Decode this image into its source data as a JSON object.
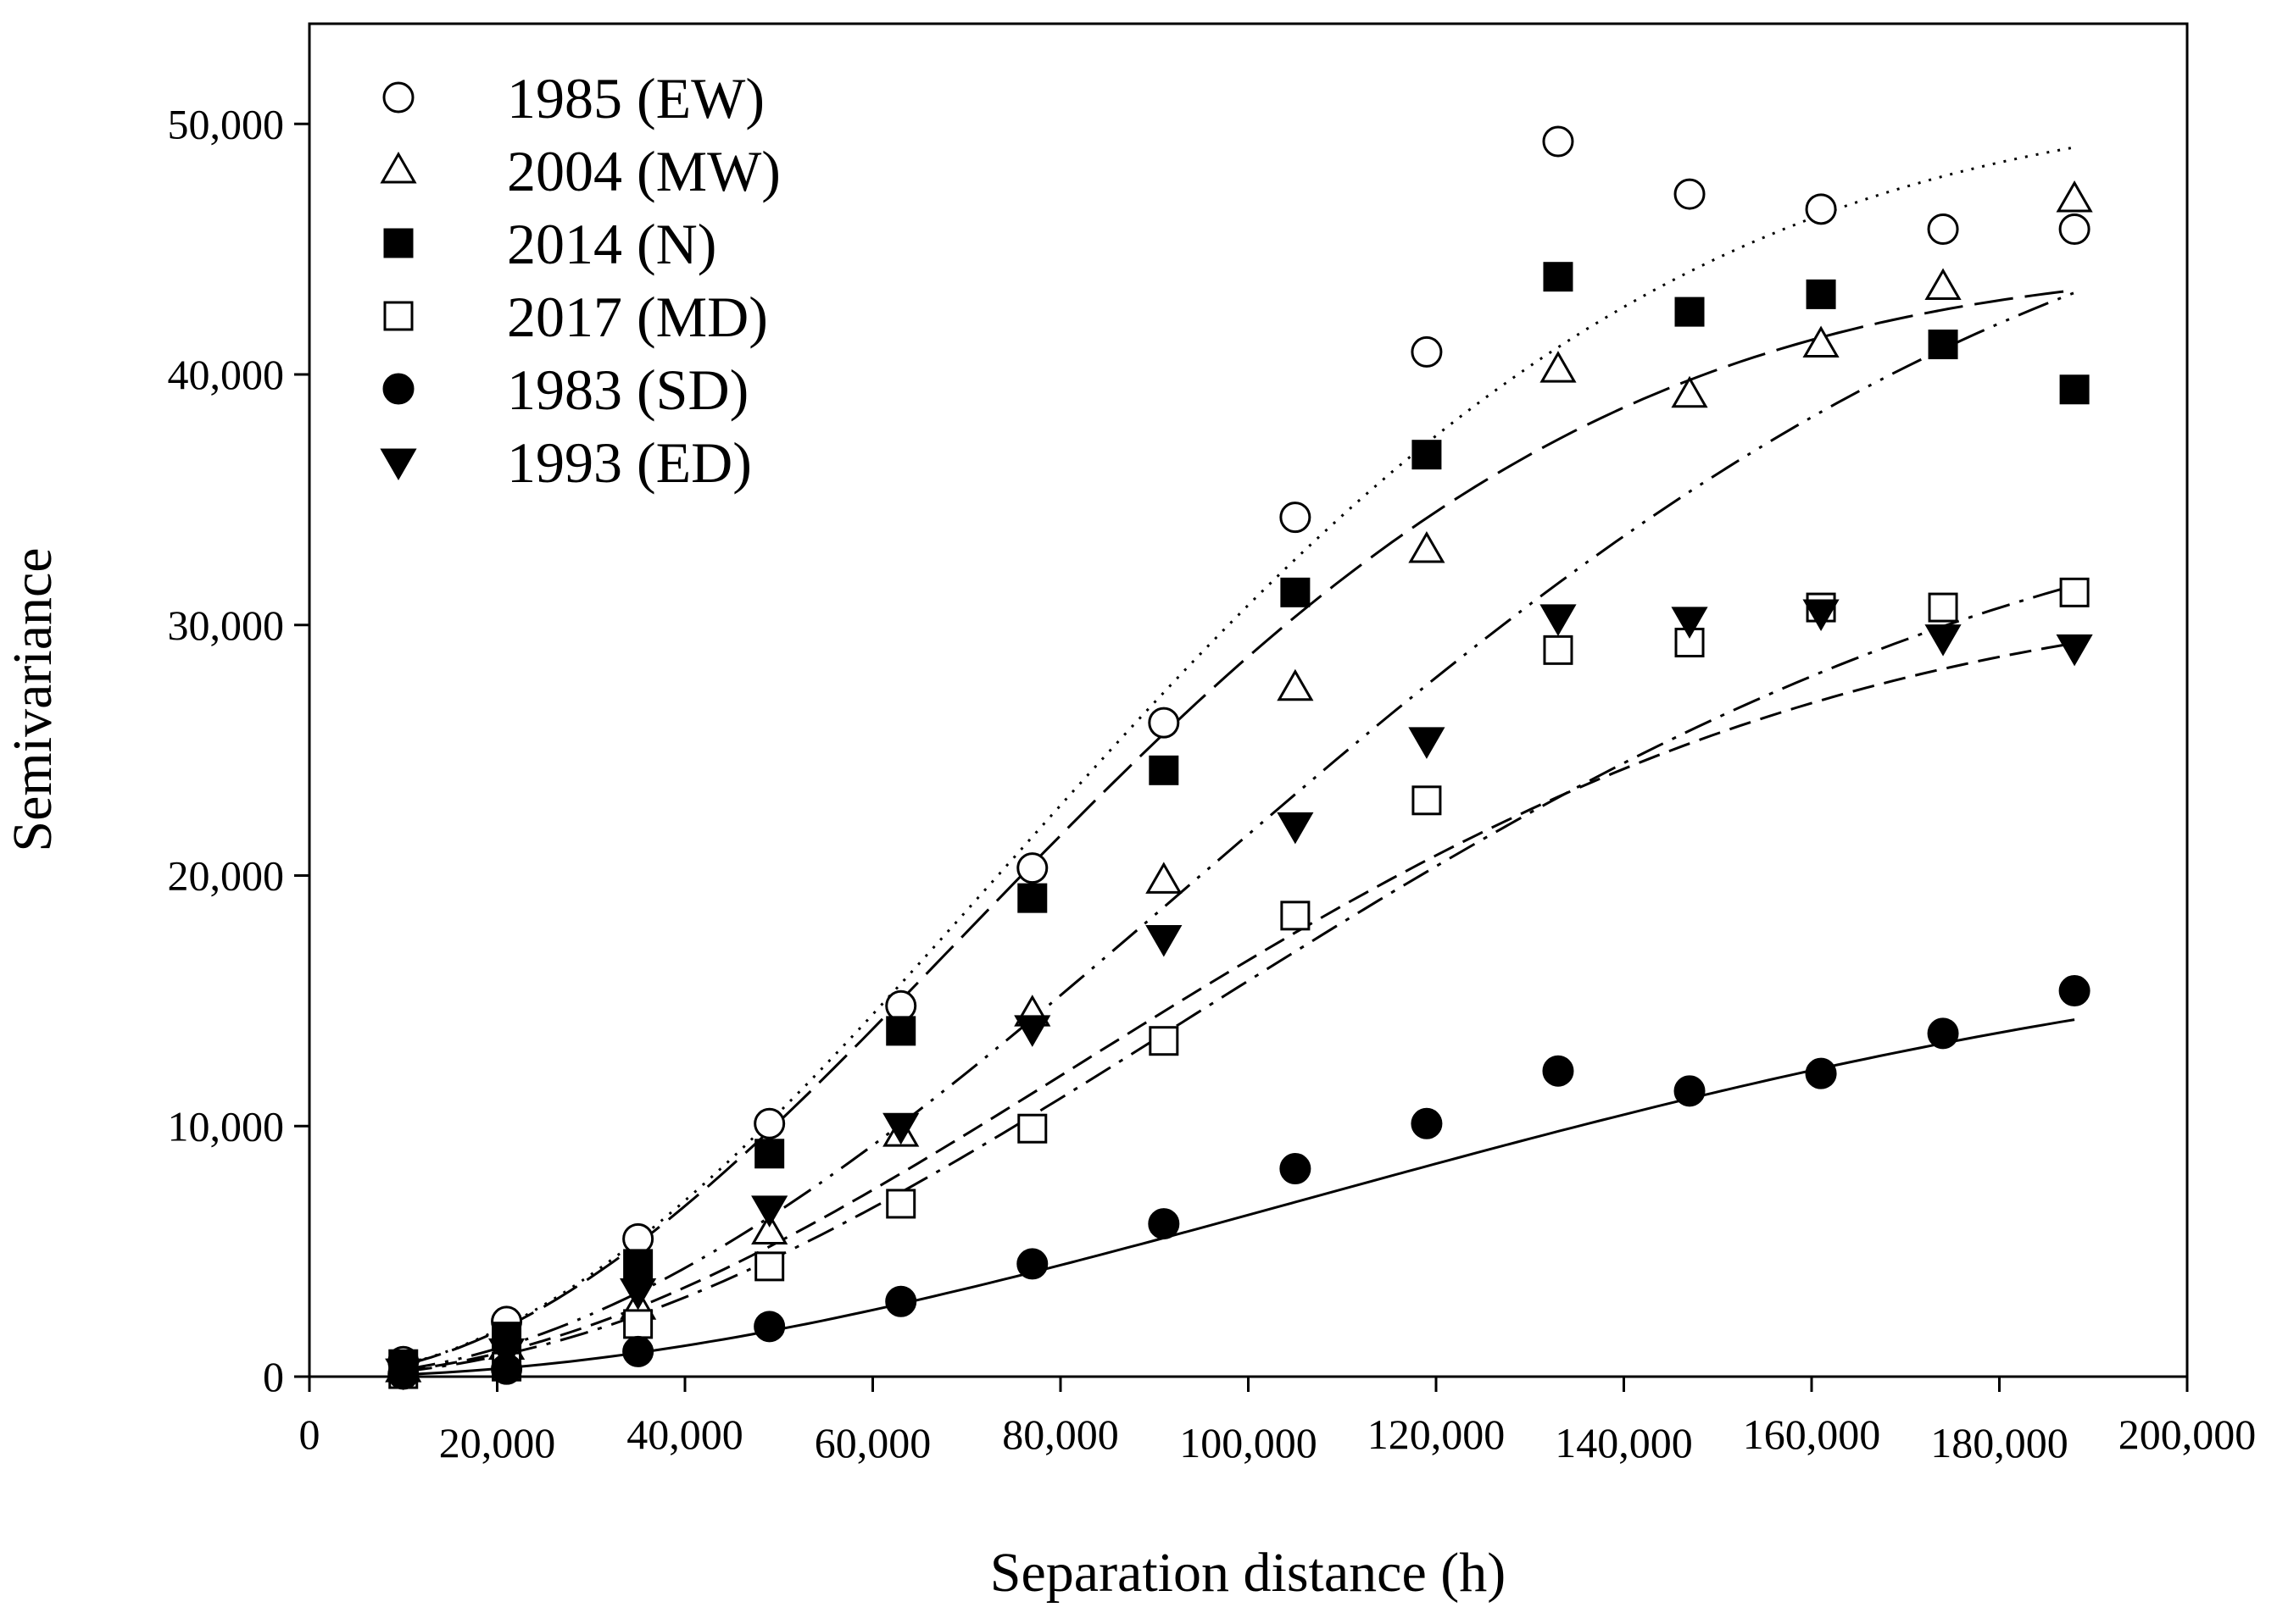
{
  "chart_data": {
    "type": "scatter",
    "title": "",
    "xlabel": "Separation distance (h)",
    "ylabel": "Semivariance",
    "xlim": [
      0,
      200000
    ],
    "ylim": [
      0,
      54000
    ],
    "grid": false,
    "legend_position": "top-left",
    "x_ticks": [
      0,
      20000,
      40000,
      60000,
      80000,
      100000,
      120000,
      140000,
      160000,
      180000,
      200000
    ],
    "x_tick_labels": [
      "0",
      "20,000",
      "40,000",
      "60,000",
      "80,000",
      "100,000",
      "120,000",
      "140,000",
      "160,000",
      "180,000",
      "200,000"
    ],
    "y_ticks": [
      0,
      10000,
      20000,
      30000,
      40000,
      50000
    ],
    "y_tick_labels": [
      "0",
      "10,000",
      "20,000",
      "30,000",
      "40,000",
      "50,000"
    ],
    "x": [
      10000,
      21000,
      35000,
      49000,
      63000,
      77000,
      91000,
      105000,
      119000,
      133000,
      147000,
      161000,
      174000,
      188000
    ],
    "series": [
      {
        "name": "1985 (EW)",
        "marker": "circle-open",
        "line_style": "dotted",
        "values": [
          600,
          2200,
          5500,
          10100,
          14800,
          20300,
          26100,
          34300,
          40900,
          49300,
          47200,
          46600,
          45800,
          45800
        ],
        "fit_sill": 51000,
        "fit_range": 180000
      },
      {
        "name": "2004 (MW)",
        "marker": "triangle-open",
        "line_style": "dash-dot-dot",
        "values": [
          300,
          1200,
          2800,
          5800,
          9700,
          14500,
          19800,
          27500,
          33000,
          40200,
          39200,
          41200,
          43500,
          47000
        ],
        "fit_sill": 50000,
        "fit_range": 230000
      },
      {
        "name": "2014 (N)",
        "marker": "square-filled",
        "line_style": "long-dash",
        "values": [
          500,
          1600,
          4500,
          8900,
          13800,
          19100,
          24200,
          31300,
          36800,
          43900,
          42500,
          43200,
          41200,
          39400
        ],
        "fit_sill": 44500,
        "fit_range": 170000
      },
      {
        "name": "2017 (MD)",
        "marker": "square-open",
        "line_style": "dash-dot",
        "values": [
          100,
          400,
          2100,
          4400,
          6900,
          9900,
          13400,
          18400,
          23000,
          29000,
          29300,
          30700,
          30700,
          31300
        ],
        "fit_sill": 36500,
        "fit_range": 230000
      },
      {
        "name": "1983 (SD)",
        "marker": "circle-filled",
        "line_style": "solid",
        "values": [
          100,
          300,
          1000,
          2000,
          3000,
          4500,
          6100,
          8300,
          10100,
          12200,
          11400,
          12100,
          13700,
          15400
        ],
        "fit_sill": 18000,
        "fit_range": 260000
      },
      {
        "name": "1993 (ED)",
        "marker": "triangle-down-filled",
        "line_style": "short-dash",
        "values": [
          200,
          1000,
          3400,
          6700,
          10000,
          13900,
          17500,
          22000,
          25400,
          30300,
          30200,
          30500,
          29500,
          29100
        ],
        "fit_sill": 31500,
        "fit_range": 200000
      }
    ]
  }
}
